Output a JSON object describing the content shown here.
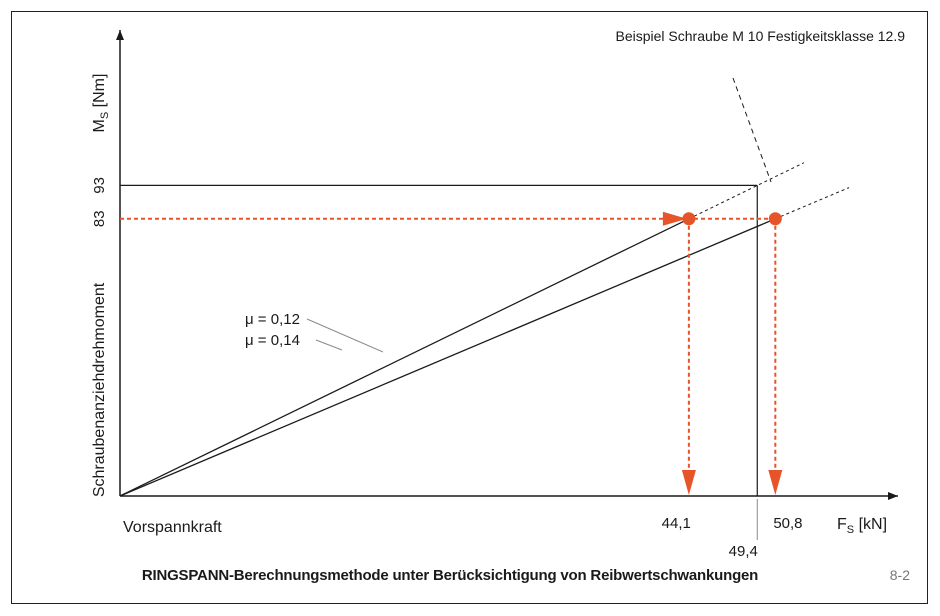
{
  "chart_data": {
    "type": "line",
    "title": "Beispiel Schraube M 10 Festigkeitsklasse 12.9",
    "ylabel_symbol": "M",
    "ylabel_sub": "S",
    "ylabel_unit": "[Nm]",
    "ylabel_long": "Schraubenanziehdrehmoment",
    "xlabel_symbol": "F",
    "xlabel_sub": "S",
    "xlabel_unit": "[kN]",
    "xlabel_long": "Vorspannkraft",
    "xlim": [
      0,
      64
    ],
    "ylim": [
      0,
      108
    ],
    "series": [
      {
        "name": "μ = 0,12",
        "x": [
          0,
          44.1
        ],
        "y": [
          0,
          83
        ]
      },
      {
        "name": "μ = 0,14",
        "x": [
          0,
          50.8
        ],
        "y": [
          0,
          83
        ]
      }
    ],
    "reference_box": {
      "x": 49.4,
      "y": 93,
      "x_label": "49,4",
      "y_label": "93"
    },
    "working_level": {
      "y": 83,
      "y_label": "83"
    },
    "markers": [
      {
        "x": 44.1,
        "y": 83,
        "x_label": "44,1"
      },
      {
        "x": 50.8,
        "y": 83,
        "x_label": "50,8"
      }
    ],
    "colors": {
      "axis": "#1a1a1a",
      "highlight": "#e8542a",
      "guide": "#8a8a8a"
    }
  },
  "caption": "RINGSPANN-Berechnungsmethode unter Berücksichtigung von Reibwertschwankungen",
  "figure_number": "8-2"
}
